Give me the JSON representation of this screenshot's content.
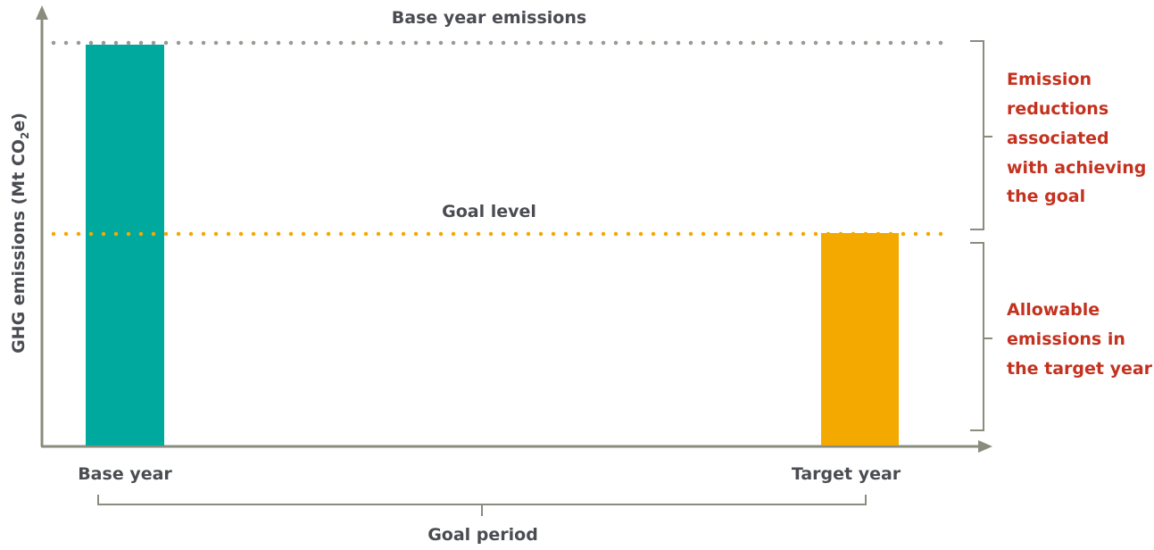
{
  "colors": {
    "axis": "#8a8c7e",
    "text": "#4a4c52",
    "side_text": "#c4321f",
    "base_bar": "#00a99d",
    "target_bar": "#f4a900",
    "base_line": "#9a9a94",
    "goal_line": "#f4a900"
  },
  "axis": {
    "y_label_main": "GHG emissions (Mt CO",
    "y_label_sub": "2",
    "y_label_end": "e)"
  },
  "lines": {
    "base_label": "Base year emissions",
    "goal_label": "Goal level"
  },
  "categories": {
    "base": "Base year",
    "target": "Target year"
  },
  "period_label": "Goal period",
  "right_labels": {
    "reductions": [
      "Emission",
      "reductions",
      "associated",
      "with achieving",
      "the goal"
    ],
    "allowable": [
      "Allowable",
      "emissions in",
      "the target year"
    ]
  },
  "icons": {
    "y_arrow": "arrow-up-icon",
    "x_arrow": "arrow-right-icon"
  }
}
